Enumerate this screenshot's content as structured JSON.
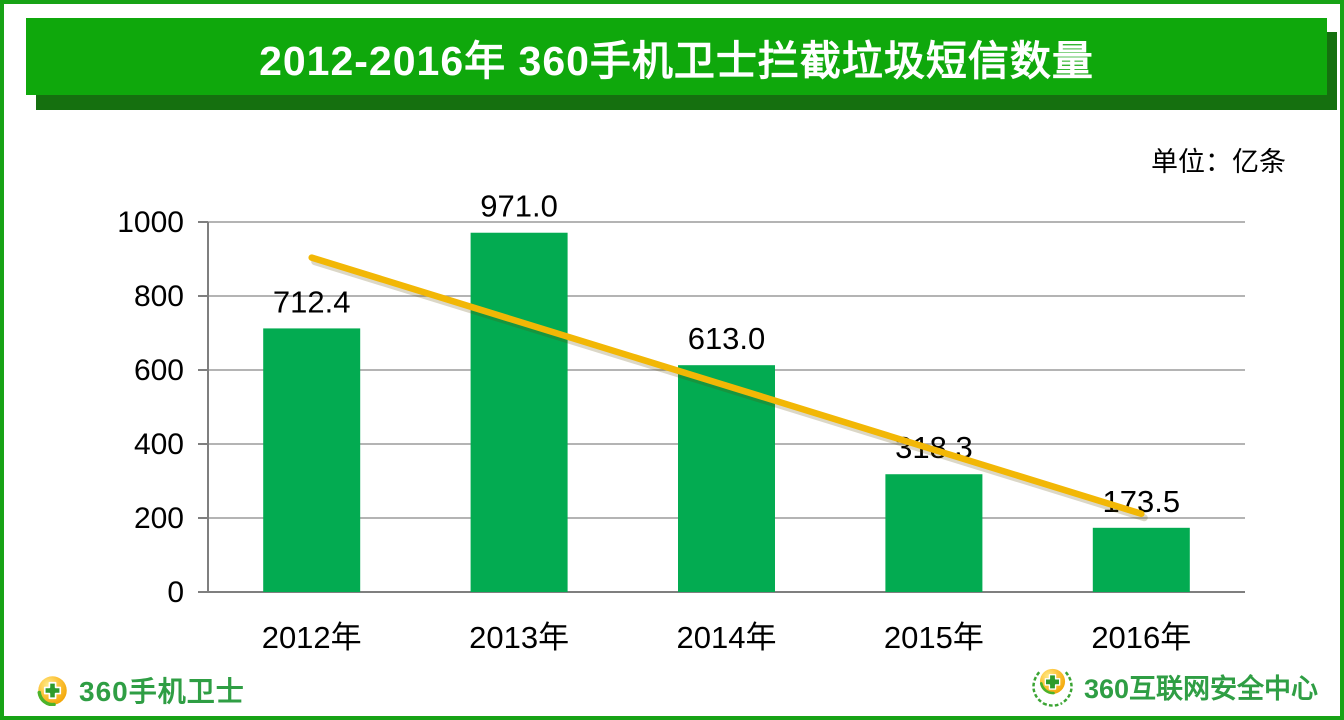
{
  "header": {
    "title": "2012-2016年 360手机卫士拦截垃圾短信数量",
    "banner_color": "#0FA80C",
    "banner_shadow_color": "#15700F",
    "text_color": "#FFFFFF"
  },
  "unit_label": "单位：亿条",
  "chart_data": {
    "type": "bar",
    "title": "2012-2016年 360手机卫士拦截垃圾短信数量",
    "unit": "单位：亿条",
    "categories": [
      "2012年",
      "2013年",
      "2014年",
      "2015年",
      "2016年"
    ],
    "values": [
      712.4,
      971.0,
      613.0,
      318.3,
      173.5
    ],
    "value_labels": [
      "712.4",
      "971.0",
      "613.0",
      "318.3",
      "173.5"
    ],
    "xlabel": "",
    "ylabel": "",
    "ylim": [
      0,
      1000
    ],
    "yticks": [
      0,
      200,
      400,
      600,
      800,
      1000
    ],
    "grid": true,
    "legend": "none",
    "bar_color": "#03AB51",
    "gridline_color": "#9C9C9C",
    "axis_color": "#7F7F7F",
    "label_color": "#000000",
    "trendline": {
      "type": "linear",
      "color": "#F2B705",
      "start_value": 903.7,
      "end_value": 211.5
    }
  },
  "footer": {
    "left_logo": {
      "text": "360手机卫士",
      "color": "#2F9E44",
      "icon": "360-shield-ball-icon"
    },
    "right_logo": {
      "text": "360互联网安全中心",
      "color": "#2F9E44",
      "icon": "360-laurel-ball-icon"
    }
  }
}
